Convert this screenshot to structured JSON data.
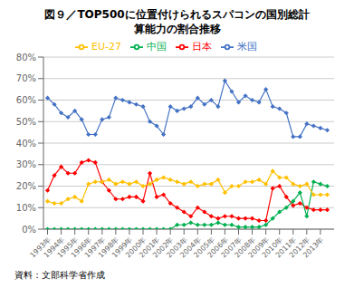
{
  "chart_data": {
    "type": "line",
    "title": "図９／TOP500に位置付けられるスパコンの国別総計",
    "subtitle": "算能力の割合推移",
    "annotations": [
      "資料：文部科学省作成"
    ],
    "x": [
      1993.0,
      1993.5,
      1994.0,
      1994.5,
      1995.0,
      1995.5,
      1996.0,
      1996.5,
      1997.0,
      1997.5,
      1998.0,
      1998.5,
      1999.0,
      1999.5,
      2000.0,
      2000.5,
      2001.0,
      2001.5,
      2002.0,
      2002.5,
      2003.0,
      2003.5,
      2004.0,
      2004.5,
      2005.0,
      2005.5,
      2006.0,
      2006.5,
      2007.0,
      2007.5,
      2008.0,
      2008.5,
      2009.0,
      2009.5,
      2010.0,
      2010.5,
      2011.0,
      2011.5,
      2012.0,
      2012.5,
      2013.0,
      2013.5
    ],
    "series": [
      {
        "name": "米国",
        "color": "#4472c4",
        "values": [
          61,
          58,
          54,
          52,
          55,
          51,
          44,
          44,
          51,
          52,
          61,
          60,
          59,
          58,
          57,
          50,
          48,
          44,
          57,
          55,
          56,
          57,
          61,
          58,
          60,
          57,
          69,
          64,
          59,
          62,
          60,
          59,
          65,
          57,
          56,
          54,
          43,
          43,
          49,
          48,
          47,
          46
        ]
      },
      {
        "name": "日本",
        "color": "#ff0000",
        "values": [
          18,
          25,
          29,
          26,
          26,
          31,
          32,
          31,
          22,
          18,
          14,
          14,
          15,
          15,
          13,
          26,
          15,
          16,
          12,
          10,
          8,
          6,
          10,
          8,
          6,
          5,
          6,
          6,
          5,
          5,
          5,
          4,
          4,
          19,
          20,
          15,
          11,
          12,
          10,
          9,
          9,
          9
        ]
      },
      {
        "name": "中国",
        "color": "#00b050",
        "values": [
          0,
          0,
          0,
          0,
          0,
          0,
          0,
          0,
          0,
          0,
          0,
          0,
          0,
          0,
          0,
          0,
          0,
          0,
          0,
          2,
          2,
          3,
          2,
          2,
          2,
          3,
          2,
          2,
          1,
          1,
          1,
          1,
          2,
          5,
          8,
          10,
          13,
          17,
          6,
          22,
          21,
          20
        ]
      },
      {
        "name": "EU-27",
        "color": "#ffc000",
        "values": [
          13,
          12,
          12,
          14,
          15,
          13,
          21,
          22,
          22,
          23,
          21,
          22,
          21,
          22,
          20,
          21,
          23,
          24,
          23,
          22,
          21,
          22,
          20,
          21,
          21,
          23,
          17,
          20,
          20,
          22,
          22,
          23,
          21,
          27,
          24,
          24,
          21,
          20,
          21,
          16,
          16,
          16
        ]
      }
    ],
    "xlim": [
      1992.7,
      2014.0
    ],
    "xticks": [
      {
        "value": 1993,
        "label": "1993年"
      },
      {
        "value": 1994,
        "label": "1994年"
      },
      {
        "value": 1995,
        "label": "1995年"
      },
      {
        "value": 1996,
        "label": "1996年"
      },
      {
        "value": 1997,
        "label": "1997年"
      },
      {
        "value": 1998,
        "label": "1998年"
      },
      {
        "value": 1999,
        "label": "1999年"
      },
      {
        "value": 2000,
        "label": "2000年"
      },
      {
        "value": 2001,
        "label": "2001年"
      },
      {
        "value": 2002,
        "label": "2002年"
      },
      {
        "value": 2003,
        "label": "2003年"
      },
      {
        "value": 2004,
        "label": "2004年"
      },
      {
        "value": 2005,
        "label": "2005年"
      },
      {
        "value": 2006,
        "label": "2006年"
      },
      {
        "value": 2007,
        "label": "2007年"
      },
      {
        "value": 2008,
        "label": "2008年"
      },
      {
        "value": 2009,
        "label": "2009年"
      },
      {
        "value": 2010,
        "label": "2010年"
      },
      {
        "value": 2011,
        "label": "2011年"
      },
      {
        "value": 2012,
        "label": "2012年"
      },
      {
        "value": 2013,
        "label": "2013年"
      }
    ],
    "ylim": [
      0,
      80
    ],
    "yticks": [
      {
        "value": 0,
        "label": "0%"
      },
      {
        "value": 10,
        "label": "10%"
      },
      {
        "value": 20,
        "label": "20%"
      },
      {
        "value": 30,
        "label": "30%"
      },
      {
        "value": 40,
        "label": "40%"
      },
      {
        "value": 50,
        "label": "50%"
      },
      {
        "value": 60,
        "label": "60%"
      },
      {
        "value": 70,
        "label": "70%"
      },
      {
        "value": 80,
        "label": "80%"
      }
    ],
    "grid": true,
    "legend": "top",
    "marker": "diamond"
  }
}
